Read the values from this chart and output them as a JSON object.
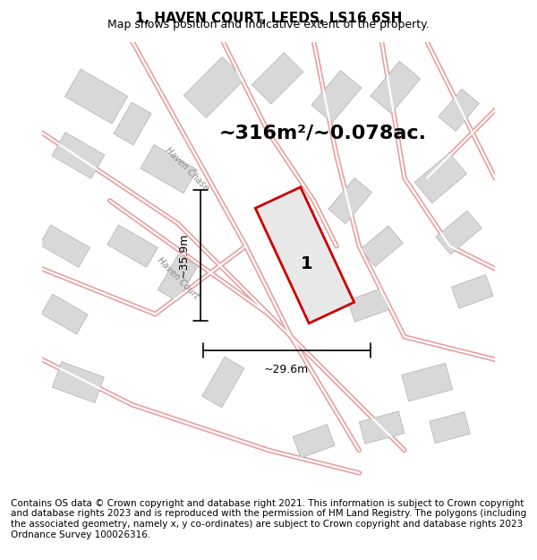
{
  "title": "1, HAVEN COURT, LEEDS, LS16 6SH",
  "subtitle": "Map shows position and indicative extent of the property.",
  "area_text": "~316m²/~0.078ac.",
  "label_number": "1",
  "dim_width": "~29.6m",
  "dim_height": "~35.9m",
  "footer_text": "Contains OS data © Crown copyright and database right 2021. This information is subject to Crown copyright and database rights 2023 and is reproduced with the permission of HM Land Registry. The polygons (including the associated geometry, namely x, y co-ordinates) are subject to Crown copyright and database rights 2023 Ordnance Survey 100026316.",
  "bg_color": "#f5f0f0",
  "map_bg": "#f0eded",
  "road_color": "#e8a0a0",
  "building_color": "#d8d8d8",
  "building_edge": "#b0b0b0",
  "plot_color": "#e8e8e8",
  "plot_edge": "#cc0000",
  "road_label1": "Haven Chase",
  "road_label2": "Haven Court",
  "title_fontsize": 11,
  "subtitle_fontsize": 9,
  "area_fontsize": 18,
  "footer_fontsize": 7.5
}
